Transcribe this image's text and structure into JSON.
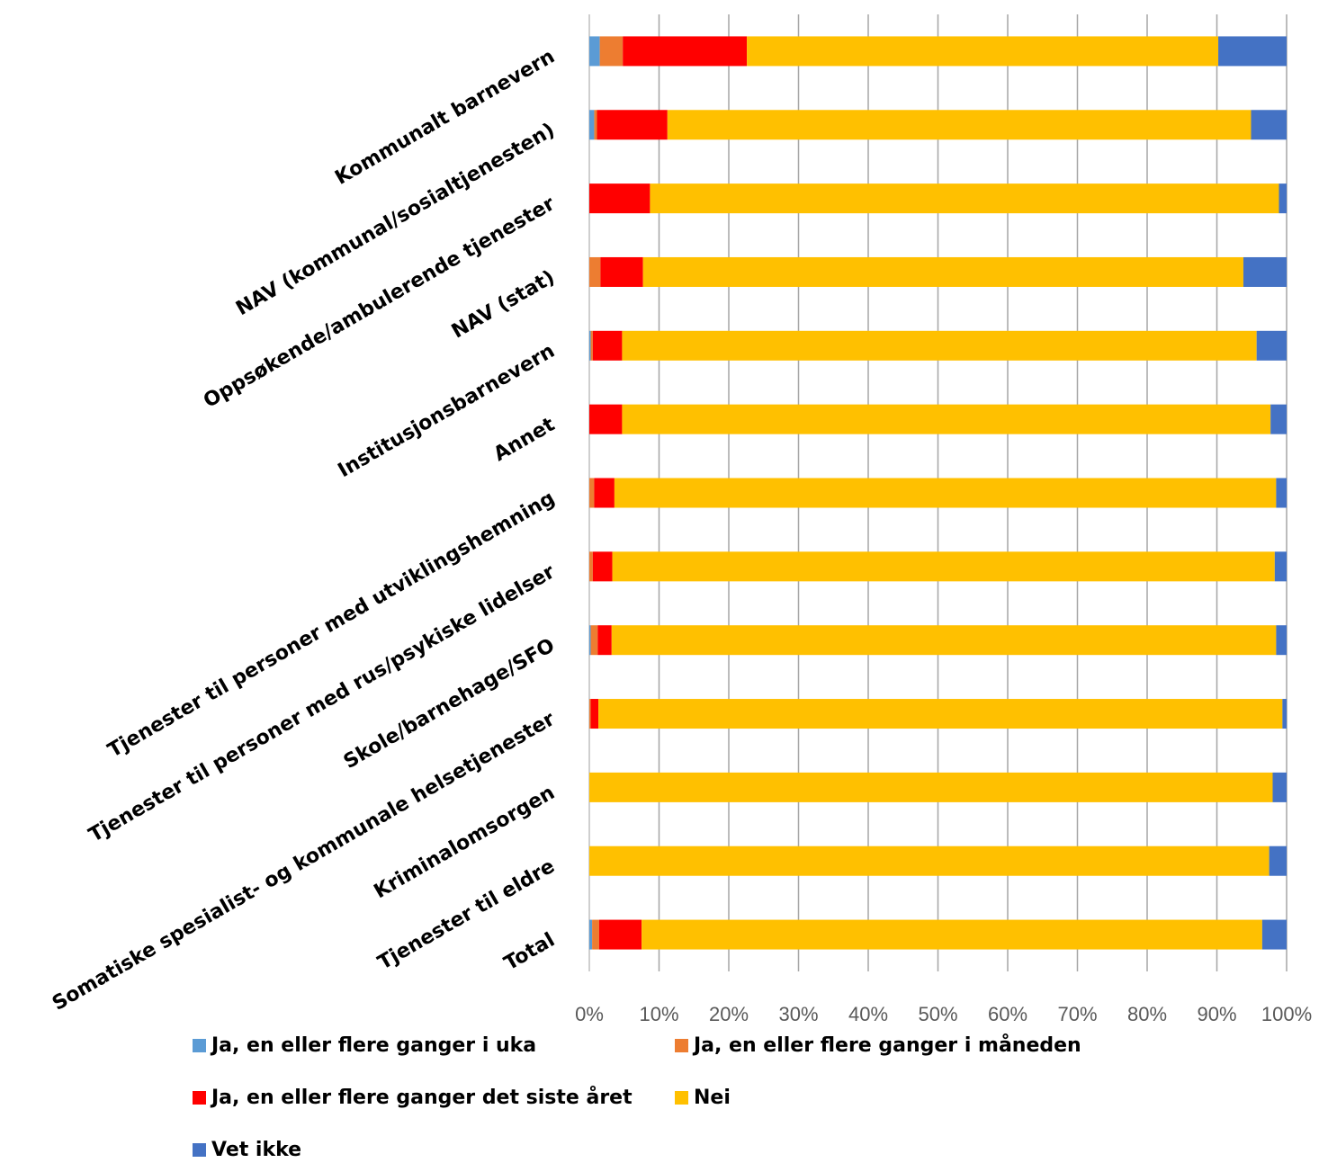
{
  "chart_data": {
    "type": "bar",
    "orientation": "horizontal",
    "stacked": true,
    "normalized": true,
    "categories": [
      "Kommunalt barnevern",
      "NAV (kommunal/sosialtjenesten)",
      "Oppsøkende/ambulerende tjenester",
      "NAV (stat)",
      "Institusjonsbarnevern",
      "Annet",
      "Tjenester til personer med utviklingshemning",
      "Tjenester til personer med rus/psykiske lidelser",
      "Skole/barnehage/SFO",
      "Somatiske spesialist- og kommunale helsetjenester",
      "Kriminalomsorgen",
      "Tjenester til eldre",
      "Total"
    ],
    "series": [
      {
        "name": "Ja, en eller flere ganger i uka",
        "color": "#5B9BD5",
        "values": [
          1.5,
          0.7,
          0,
          0,
          0.2,
          0,
          0,
          0,
          0.2,
          0,
          0,
          0,
          0.4
        ]
      },
      {
        "name": "Ja, en eller flere ganger i måneden",
        "color": "#ED7D31",
        "values": [
          3.3,
          0.4,
          0,
          1.6,
          0.3,
          0,
          0.7,
          0.5,
          1.0,
          0.2,
          0,
          0,
          1.0
        ]
      },
      {
        "name": "Ja, en eller flere ganger det siste året",
        "color": "#FF0000",
        "values": [
          17.8,
          10.1,
          8.7,
          6.1,
          4.2,
          4.7,
          2.9,
          2.8,
          2.0,
          1.1,
          0,
          0,
          6.1
        ]
      },
      {
        "name": "Nei",
        "color": "#FFC000",
        "values": [
          67.6,
          83.7,
          90.2,
          86.1,
          91.0,
          93.0,
          94.9,
          95.0,
          95.3,
          98.1,
          98.0,
          97.5,
          89.0
        ]
      },
      {
        "name": "Vet ikke",
        "color": "#4472C4",
        "values": [
          9.8,
          5.1,
          1.1,
          6.2,
          4.3,
          2.3,
          1.5,
          1.7,
          1.5,
          0.6,
          2.0,
          2.5,
          3.5
        ]
      }
    ],
    "x_ticks": [
      "0%",
      "10%",
      "20%",
      "30%",
      "40%",
      "50%",
      "60%",
      "70%",
      "80%",
      "90%",
      "100%"
    ],
    "xlim": [
      0,
      100
    ],
    "grid": true,
    "legend_position": "bottom"
  }
}
